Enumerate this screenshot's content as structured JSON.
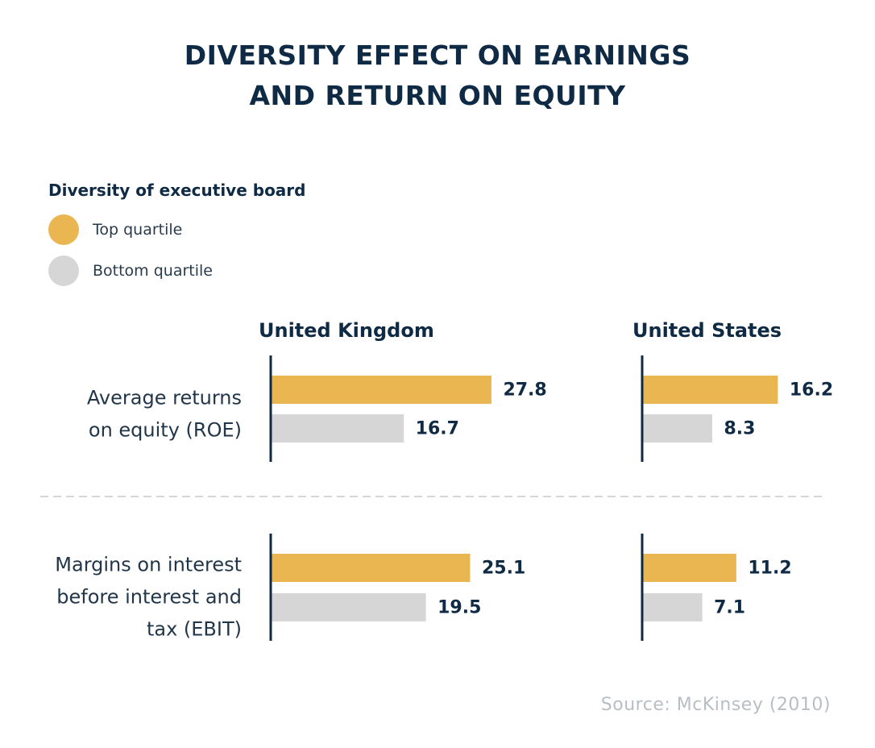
{
  "chart_data": {
    "type": "bar",
    "title": [
      "DIVERSITY EFFECT ON EARNINGS",
      "AND RETURN ON EQUITY"
    ],
    "legend_title": "Diversity of executive board",
    "series": [
      {
        "name": "Top quartile",
        "color": "#e9b651"
      },
      {
        "name": "Bottom quartile",
        "color": "#d6d6d6"
      }
    ],
    "panels": [
      "United Kingdom",
      "United States"
    ],
    "categories": [
      {
        "label": [
          "Average returns",
          "on equity (ROE)"
        ]
      },
      {
        "label": [
          "Margins on interest",
          "before interest and",
          "tax (EBIT)"
        ]
      }
    ],
    "values": {
      "United Kingdom": [
        [
          27.8,
          16.7
        ],
        [
          25.1,
          19.5
        ]
      ],
      "United States": [
        [
          16.2,
          8.3
        ],
        [
          11.2,
          7.1
        ]
      ]
    },
    "source": "Source: McKinsey (2010)"
  }
}
